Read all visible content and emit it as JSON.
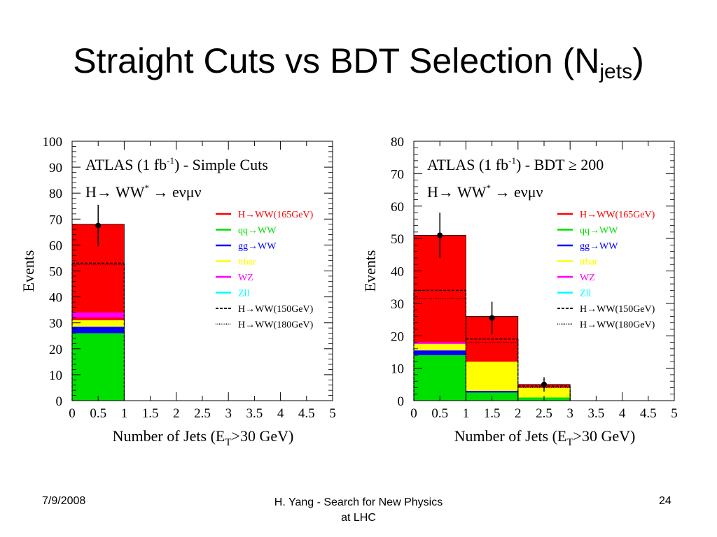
{
  "slide": {
    "title_main": "Straight Cuts vs BDT Selection (N",
    "title_sub": "jets",
    "title_end": ")"
  },
  "footer": {
    "date": "7/9/2008",
    "center_line1": "H. Yang - Search for New Physics",
    "center_line2": "at LHC",
    "page": "24"
  },
  "chart_data": [
    {
      "type": "bar",
      "stacked": true,
      "title_line1": "ATLAS (1 fb-1) - Simple Cuts",
      "title_line2": "H→ WW* → eνμν",
      "xlabel": "Number of Jets (ET>30 GeV)",
      "ylabel": "Events",
      "xlim": [
        0,
        5
      ],
      "ylim": [
        0,
        100
      ],
      "yticks": [
        0,
        10,
        20,
        30,
        40,
        50,
        60,
        70,
        80,
        90,
        100
      ],
      "xticks": [
        "0",
        "0.5",
        "1",
        "1.5",
        "2",
        "2.5",
        "3",
        "3.5",
        "4",
        "4.5",
        "5"
      ],
      "bins": [
        [
          0,
          1
        ],
        [
          1,
          2
        ],
        [
          2,
          3
        ],
        [
          3,
          4
        ],
        [
          4,
          5
        ]
      ],
      "legend_position": "right",
      "series": [
        {
          "name": "qq→WW",
          "color": "#00e000",
          "values": [
            26,
            0,
            0,
            0,
            0
          ]
        },
        {
          "name": "gg→WW",
          "color": "#0000ff",
          "values": [
            2.5,
            0,
            0,
            0,
            0
          ]
        },
        {
          "name": "ttbar",
          "color": "#ffff00",
          "values": [
            2.5,
            0,
            0,
            0,
            0
          ]
        },
        {
          "name": "WZ",
          "color": "#ff00ff",
          "values": [
            0,
            0,
            0,
            0,
            0
          ]
        },
        {
          "name": "Zll",
          "color": "#00ffff",
          "values": [
            0,
            0,
            0,
            0,
            0
          ]
        },
        {
          "name": "H→WW(165GeV)",
          "color": "#ff0000",
          "values": [
            37,
            0,
            0,
            0,
            0
          ]
        }
      ],
      "wz_line": [
        33,
        0,
        0,
        0,
        0
      ],
      "h150": {
        "name": "H→WW(150GeV)",
        "values": [
          53,
          0,
          0,
          0,
          0
        ]
      },
      "h180": {
        "name": "H→WW(180GeV)",
        "values": [
          52.5,
          0,
          0,
          0,
          0
        ]
      },
      "data_points": [
        {
          "x": 0.5,
          "y": 67.5,
          "err": 8
        }
      ]
    },
    {
      "type": "bar",
      "stacked": true,
      "title_line1": "ATLAS (1 fb-1) - BDT ≥ 200",
      "title_line2": "H→ WW* → eνμν",
      "xlabel": "Number of Jets (ET>30 GeV)",
      "ylabel": "Events",
      "xlim": [
        0,
        5
      ],
      "ylim": [
        0,
        80
      ],
      "yticks": [
        0,
        10,
        20,
        30,
        40,
        50,
        60,
        70,
        80
      ],
      "xticks": [
        "0",
        "0.5",
        "1",
        "1.5",
        "2",
        "2.5",
        "3",
        "3.5",
        "4",
        "4.5",
        "5"
      ],
      "bins": [
        [
          0,
          1
        ],
        [
          1,
          2
        ],
        [
          2,
          3
        ],
        [
          3,
          4
        ],
        [
          4,
          5
        ]
      ],
      "legend_position": "right",
      "series": [
        {
          "name": "qq→WW",
          "color": "#00e000",
          "values": [
            14,
            2.5,
            1,
            0,
            0
          ]
        },
        {
          "name": "gg→WW",
          "color": "#0000ff",
          "values": [
            1.5,
            0.5,
            0,
            0,
            0
          ]
        },
        {
          "name": "ttbar",
          "color": "#ffff00",
          "values": [
            2,
            9,
            3,
            0,
            0
          ]
        },
        {
          "name": "WZ",
          "color": "#ff00ff",
          "values": [
            0.5,
            0,
            0,
            0,
            0
          ]
        },
        {
          "name": "Zll",
          "color": "#00ffff",
          "values": [
            0,
            0,
            0,
            0,
            0
          ]
        },
        {
          "name": "H→WW(165GeV)",
          "color": "#ff0000",
          "values": [
            33,
            14,
            1,
            0,
            0
          ]
        }
      ],
      "wz_line": [
        0,
        0,
        0,
        0,
        0
      ],
      "h150": {
        "name": "H→WW(150GeV)",
        "values": [
          34,
          19,
          4.5,
          0,
          0
        ]
      },
      "h180": {
        "name": "H→WW(180GeV)",
        "values": [
          31.5,
          18,
          4,
          0,
          0
        ]
      },
      "data_points": [
        {
          "x": 0.5,
          "y": 51,
          "err": 7
        },
        {
          "x": 1.5,
          "y": 25.5,
          "err": 5
        },
        {
          "x": 2.5,
          "y": 5,
          "err": 2.2
        }
      ]
    }
  ]
}
